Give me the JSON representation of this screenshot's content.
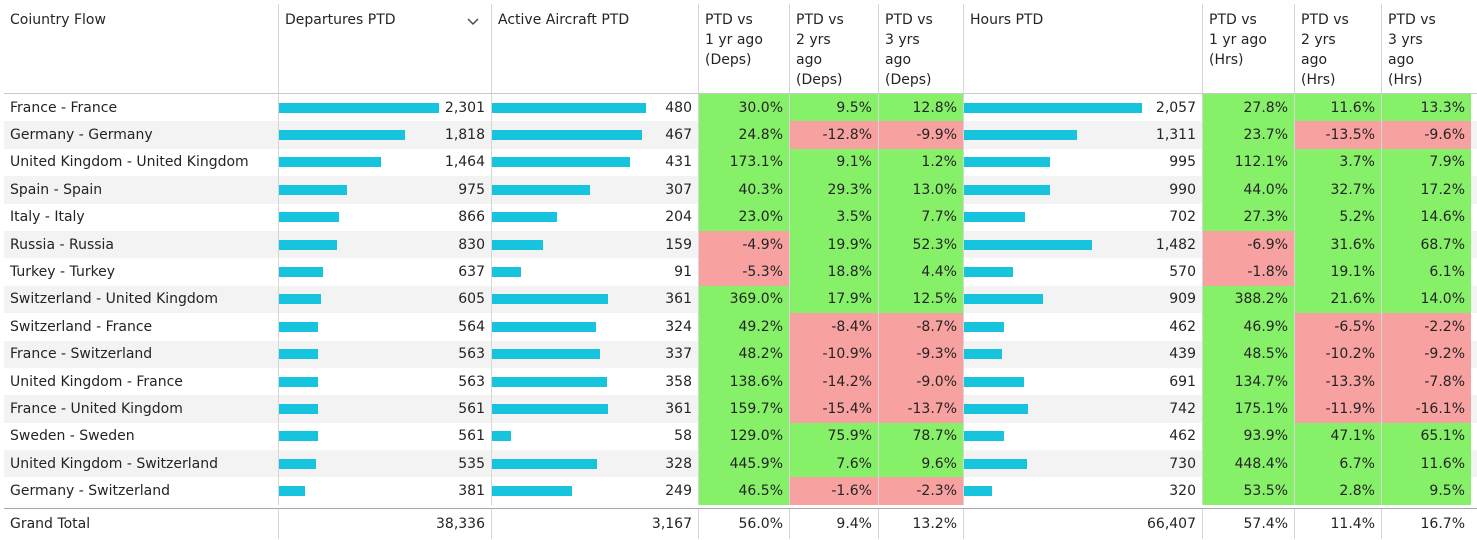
{
  "columns": {
    "country_flow": "Coiuntry Flow",
    "departures": "Departures PTD",
    "active_aircraft": "Active Aircraft PTD",
    "deps_1yr": [
      "PTD vs",
      "1 yr ago",
      "(Deps)"
    ],
    "deps_2yr": [
      "PTD vs",
      "2 yrs",
      "ago",
      "(Deps)"
    ],
    "deps_3yr": [
      "PTD vs",
      "3 yrs",
      "ago",
      "(Deps)"
    ],
    "hours": "Hours PTD",
    "hrs_1yr": [
      "PTD vs",
      "1 yr ago",
      "(Hrs)"
    ],
    "hrs_2yr": [
      "PTD vs",
      "2 yrs",
      "ago",
      "(Hrs)"
    ],
    "hrs_3yr": [
      "PTD vs",
      "3 yrs",
      "ago",
      "(Hrs)"
    ]
  },
  "sort_icon": "chevron-down-icon",
  "colors": {
    "bar": "#16c5dd",
    "positive": "#86f069",
    "negative": "#f7a1a1"
  },
  "rows": [
    {
      "flow": "France - France",
      "deps": "2,301",
      "deps_n": 2301,
      "aircraft": "480",
      "aircraft_n": 480,
      "d1": "30.0%",
      "d2": "9.5%",
      "d3": "12.8%",
      "hours": "2,057",
      "hours_n": 2057,
      "h1": "27.8%",
      "h2": "11.6%",
      "h3": "13.3%"
    },
    {
      "flow": "Germany - Germany",
      "deps": "1,818",
      "deps_n": 1818,
      "aircraft": "467",
      "aircraft_n": 467,
      "d1": "24.8%",
      "d2": "-12.8%",
      "d3": "-9.9%",
      "hours": "1,311",
      "hours_n": 1311,
      "h1": "23.7%",
      "h2": "-13.5%",
      "h3": "-9.6%"
    },
    {
      "flow": "United Kingdom - United Kingdom",
      "deps": "1,464",
      "deps_n": 1464,
      "aircraft": "431",
      "aircraft_n": 431,
      "d1": "173.1%",
      "d2": "9.1%",
      "d3": "1.2%",
      "hours": "995",
      "hours_n": 995,
      "h1": "112.1%",
      "h2": "3.7%",
      "h3": "7.9%"
    },
    {
      "flow": "Spain - Spain",
      "deps": "975",
      "deps_n": 975,
      "aircraft": "307",
      "aircraft_n": 307,
      "d1": "40.3%",
      "d2": "29.3%",
      "d3": "13.0%",
      "hours": "990",
      "hours_n": 990,
      "h1": "44.0%",
      "h2": "32.7%",
      "h3": "17.2%"
    },
    {
      "flow": "Italy - Italy",
      "deps": "866",
      "deps_n": 866,
      "aircraft": "204",
      "aircraft_n": 204,
      "d1": "23.0%",
      "d2": "3.5%",
      "d3": "7.7%",
      "hours": "702",
      "hours_n": 702,
      "h1": "27.3%",
      "h2": "5.2%",
      "h3": "14.6%"
    },
    {
      "flow": "Russia - Russia",
      "deps": "830",
      "deps_n": 830,
      "aircraft": "159",
      "aircraft_n": 159,
      "d1": "-4.9%",
      "d2": "19.9%",
      "d3": "52.3%",
      "hours": "1,482",
      "hours_n": 1482,
      "h1": "-6.9%",
      "h2": "31.6%",
      "h3": "68.7%"
    },
    {
      "flow": "Turkey - Turkey",
      "deps": "637",
      "deps_n": 637,
      "aircraft": "91",
      "aircraft_n": 91,
      "d1": "-5.3%",
      "d2": "18.8%",
      "d3": "4.4%",
      "hours": "570",
      "hours_n": 570,
      "h1": "-1.8%",
      "h2": "19.1%",
      "h3": "6.1%"
    },
    {
      "flow": "Switzerland - United Kingdom",
      "deps": "605",
      "deps_n": 605,
      "aircraft": "361",
      "aircraft_n": 361,
      "d1": "369.0%",
      "d2": "17.9%",
      "d3": "12.5%",
      "hours": "909",
      "hours_n": 909,
      "h1": "388.2%",
      "h2": "21.6%",
      "h3": "14.0%"
    },
    {
      "flow": "Switzerland - France",
      "deps": "564",
      "deps_n": 564,
      "aircraft": "324",
      "aircraft_n": 324,
      "d1": "49.2%",
      "d2": "-8.4%",
      "d3": "-8.7%",
      "hours": "462",
      "hours_n": 462,
      "h1": "46.9%",
      "h2": "-6.5%",
      "h3": "-2.2%"
    },
    {
      "flow": "France - Switzerland",
      "deps": "563",
      "deps_n": 563,
      "aircraft": "337",
      "aircraft_n": 337,
      "d1": "48.2%",
      "d2": "-10.9%",
      "d3": "-9.3%",
      "hours": "439",
      "hours_n": 439,
      "h1": "48.5%",
      "h2": "-10.2%",
      "h3": "-9.2%"
    },
    {
      "flow": "United Kingdom - France",
      "deps": "563",
      "deps_n": 563,
      "aircraft": "358",
      "aircraft_n": 358,
      "d1": "138.6%",
      "d2": "-14.2%",
      "d3": "-9.0%",
      "hours": "691",
      "hours_n": 691,
      "h1": "134.7%",
      "h2": "-13.3%",
      "h3": "-7.8%"
    },
    {
      "flow": "France - United Kingdom",
      "deps": "561",
      "deps_n": 561,
      "aircraft": "361",
      "aircraft_n": 361,
      "d1": "159.7%",
      "d2": "-15.4%",
      "d3": "-13.7%",
      "hours": "742",
      "hours_n": 742,
      "h1": "175.1%",
      "h2": "-11.9%",
      "h3": "-16.1%"
    },
    {
      "flow": "Sweden - Sweden",
      "deps": "561",
      "deps_n": 561,
      "aircraft": "58",
      "aircraft_n": 58,
      "d1": "129.0%",
      "d2": "75.9%",
      "d3": "78.7%",
      "hours": "462",
      "hours_n": 462,
      "h1": "93.9%",
      "h2": "47.1%",
      "h3": "65.1%"
    },
    {
      "flow": "United Kingdom - Switzerland",
      "deps": "535",
      "deps_n": 535,
      "aircraft": "328",
      "aircraft_n": 328,
      "d1": "445.9%",
      "d2": "7.6%",
      "d3": "9.6%",
      "hours": "730",
      "hours_n": 730,
      "h1": "448.4%",
      "h2": "6.7%",
      "h3": "11.6%"
    },
    {
      "flow": "Germany - Switzerland",
      "deps": "381",
      "deps_n": 381,
      "aircraft": "249",
      "aircraft_n": 249,
      "d1": "46.5%",
      "d2": "-1.6%",
      "d3": "-2.3%",
      "hours": "320",
      "hours_n": 320,
      "h1": "53.5%",
      "h2": "2.8%",
      "h3": "9.5%"
    }
  ],
  "grand_total": {
    "label": "Grand Total",
    "deps": "38,336",
    "aircraft": "3,167",
    "d1": "56.0%",
    "d2": "9.4%",
    "d3": "13.2%",
    "hours": "66,407",
    "h1": "57.4%",
    "h2": "11.4%",
    "h3": "16.7%"
  }
}
